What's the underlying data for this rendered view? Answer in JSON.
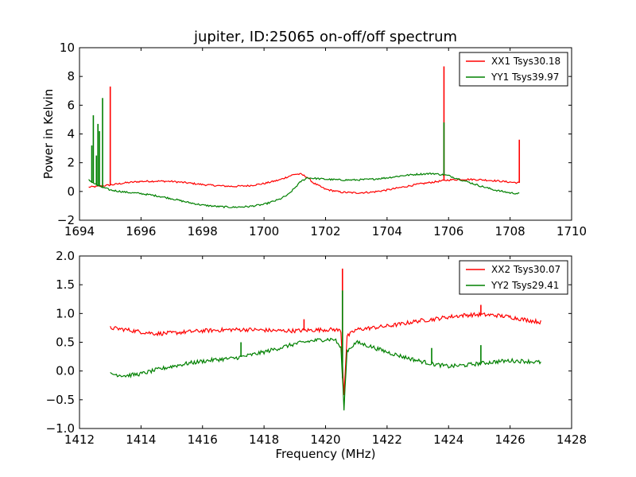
{
  "colors": {
    "red": "#ff0000",
    "green": "#008000",
    "frame": "#000000",
    "background": "#ffffff"
  },
  "chart_data": [
    {
      "type": "line",
      "title": "jupiter, ID:25065 on-off/off spectrum",
      "xlabel": "",
      "ylabel": "Power in Kelvin",
      "xlim": [
        1694,
        1710
      ],
      "ylim": [
        -2,
        10
      ],
      "xticks": [
        1694,
        1696,
        1698,
        1700,
        1702,
        1704,
        1706,
        1708,
        1710
      ],
      "yticks": [
        -2,
        0,
        2,
        4,
        6,
        8,
        10
      ],
      "grid": false,
      "legend_position": "top-right",
      "series": [
        {
          "name": "XX1 Tsys30.18",
          "color": "#ff0000",
          "x": [
            1694.3,
            1694.6,
            1695.0,
            1695.5,
            1696.0,
            1696.5,
            1697.0,
            1697.5,
            1698.0,
            1698.5,
            1699.0,
            1699.5,
            1700.0,
            1700.5,
            1700.8,
            1701.0,
            1701.2,
            1701.4,
            1701.6,
            1702.0,
            1702.5,
            1703.0,
            1703.5,
            1704.0,
            1704.5,
            1705.0,
            1705.5,
            1706.0,
            1706.5,
            1707.0,
            1707.5,
            1708.0,
            1708.3
          ],
          "y": [
            0.3,
            0.35,
            0.45,
            0.6,
            0.7,
            0.72,
            0.7,
            0.6,
            0.48,
            0.4,
            0.35,
            0.4,
            0.55,
            0.8,
            1.05,
            1.2,
            1.2,
            1.0,
            0.6,
            0.15,
            -0.05,
            -0.1,
            -0.05,
            0.1,
            0.3,
            0.5,
            0.65,
            0.8,
            0.85,
            0.82,
            0.75,
            0.65,
            0.6
          ]
        },
        {
          "name": "YY1 Tsys39.97",
          "color": "#008000",
          "x": [
            1694.3,
            1694.6,
            1695.0,
            1695.5,
            1696.0,
            1696.5,
            1697.0,
            1697.5,
            1698.0,
            1698.5,
            1699.0,
            1699.5,
            1700.0,
            1700.5,
            1700.8,
            1701.0,
            1701.2,
            1701.4,
            1701.7,
            1702.0,
            1702.5,
            1703.0,
            1703.5,
            1704.0,
            1704.5,
            1705.0,
            1705.5,
            1706.0,
            1706.5,
            1707.0,
            1707.5,
            1708.0,
            1708.3
          ],
          "y": [
            0.8,
            0.4,
            0.1,
            -0.05,
            -0.15,
            -0.3,
            -0.5,
            -0.75,
            -0.95,
            -1.05,
            -1.1,
            -1.05,
            -0.9,
            -0.55,
            -0.2,
            0.25,
            0.7,
            0.95,
            0.9,
            0.85,
            0.8,
            0.8,
            0.85,
            0.95,
            1.1,
            1.2,
            1.25,
            1.1,
            0.75,
            0.4,
            0.1,
            -0.1,
            -0.15
          ]
        }
      ],
      "spikes": [
        {
          "series": "XX1 Tsys30.18",
          "x": 1695.0,
          "y": 7.3
        },
        {
          "series": "XX1 Tsys30.18",
          "x": 1705.85,
          "y": 8.7
        },
        {
          "series": "XX1 Tsys30.18",
          "x": 1708.3,
          "y": 3.6
        },
        {
          "series": "YY1 Tsys39.97",
          "x": 1694.4,
          "y": 3.2
        },
        {
          "series": "YY1 Tsys39.97",
          "x": 1694.45,
          "y": 5.3
        },
        {
          "series": "YY1 Tsys39.97",
          "x": 1694.55,
          "y": 2.5
        },
        {
          "series": "YY1 Tsys39.97",
          "x": 1694.6,
          "y": 4.7
        },
        {
          "series": "YY1 Tsys39.97",
          "x": 1694.65,
          "y": 4.2
        },
        {
          "series": "YY1 Tsys39.97",
          "x": 1694.75,
          "y": 6.5
        },
        {
          "series": "YY1 Tsys39.97",
          "x": 1705.85,
          "y": 4.8
        }
      ]
    },
    {
      "type": "line",
      "title": "",
      "xlabel": "Frequency (MHz)",
      "ylabel": "",
      "xlim": [
        1412,
        1428
      ],
      "ylim": [
        -1.0,
        2.0
      ],
      "xticks": [
        1412,
        1414,
        1416,
        1418,
        1420,
        1422,
        1424,
        1426,
        1428
      ],
      "yticks": [
        -1.0,
        -0.5,
        0.0,
        0.5,
        1.0,
        1.5,
        2.0
      ],
      "grid": false,
      "legend_position": "top-right",
      "series": [
        {
          "name": "XX2 Tsys30.07",
          "color": "#ff0000",
          "x": [
            1413.0,
            1413.5,
            1414.0,
            1414.5,
            1415.0,
            1415.5,
            1416.0,
            1416.5,
            1417.0,
            1417.5,
            1418.0,
            1418.5,
            1419.0,
            1419.5,
            1420.0,
            1420.3,
            1420.5,
            1420.6,
            1420.7,
            1421.0,
            1421.5,
            1422.0,
            1422.5,
            1423.0,
            1423.5,
            1424.0,
            1424.5,
            1425.0,
            1425.5,
            1426.0,
            1426.5,
            1427.0
          ],
          "y": [
            0.75,
            0.72,
            0.68,
            0.65,
            0.66,
            0.68,
            0.7,
            0.71,
            0.72,
            0.72,
            0.71,
            0.7,
            0.7,
            0.71,
            0.72,
            0.72,
            0.7,
            -0.4,
            0.6,
            0.72,
            0.75,
            0.78,
            0.82,
            0.87,
            0.9,
            0.94,
            0.97,
            0.98,
            0.97,
            0.94,
            0.89,
            0.85
          ]
        },
        {
          "name": "YY2 Tsys29.41",
          "color": "#008000",
          "x": [
            1413.0,
            1413.5,
            1414.0,
            1414.5,
            1415.0,
            1415.5,
            1416.0,
            1416.5,
            1417.0,
            1417.5,
            1418.0,
            1418.5,
            1419.0,
            1419.5,
            1420.0,
            1420.3,
            1420.5,
            1420.6,
            1420.7,
            1421.0,
            1421.5,
            1422.0,
            1422.5,
            1423.0,
            1423.5,
            1424.0,
            1424.5,
            1425.0,
            1425.5,
            1426.0,
            1426.5,
            1427.0
          ],
          "y": [
            -0.05,
            -0.08,
            -0.05,
            0.02,
            0.08,
            0.13,
            0.17,
            0.2,
            0.22,
            0.27,
            0.33,
            0.4,
            0.47,
            0.52,
            0.55,
            0.55,
            0.4,
            -0.65,
            0.35,
            0.5,
            0.42,
            0.33,
            0.25,
            0.18,
            0.12,
            0.08,
            0.1,
            0.13,
            0.16,
            0.18,
            0.17,
            0.15
          ]
        }
      ],
      "spikes": [
        {
          "series": "XX2 Tsys30.07",
          "x": 1419.3,
          "y": 0.9
        },
        {
          "series": "XX2 Tsys30.07",
          "x": 1420.55,
          "y": 1.78
        },
        {
          "series": "XX2 Tsys30.07",
          "x": 1425.05,
          "y": 1.15
        },
        {
          "series": "YY2 Tsys29.41",
          "x": 1417.25,
          "y": 0.5
        },
        {
          "series": "YY2 Tsys29.41",
          "x": 1420.55,
          "y": 1.4
        },
        {
          "series": "YY2 Tsys29.41",
          "x": 1423.45,
          "y": 0.4
        },
        {
          "series": "YY2 Tsys29.41",
          "x": 1425.05,
          "y": 0.45
        }
      ]
    }
  ]
}
